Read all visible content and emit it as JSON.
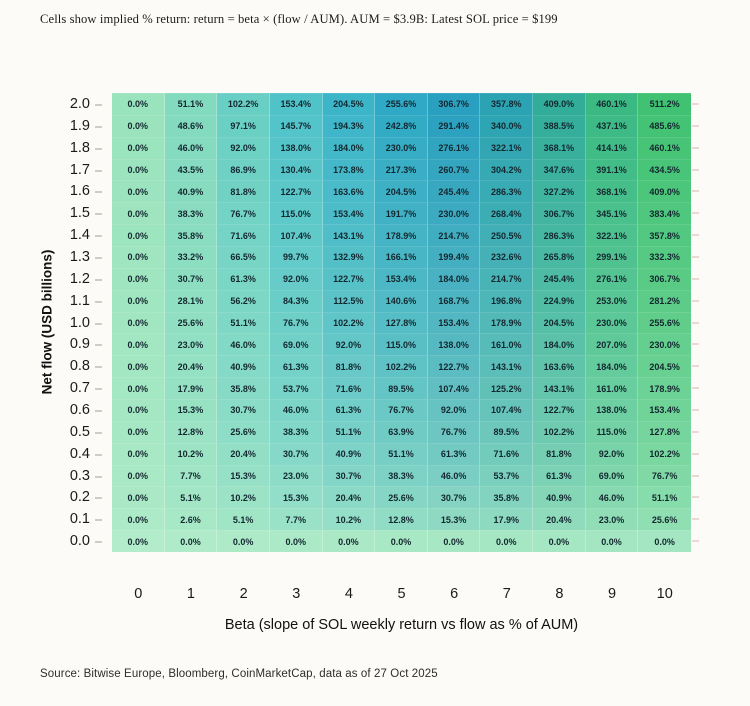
{
  "title": "Cells show implied % return: return = beta × (flow / AUM). AUM = $3.9B: Latest SOL price = $199",
  "source": "Source: Bitwise Europe, Bloomberg, CoinMarketCap, data as of 27 Oct 2025",
  "chart_data": {
    "type": "heatmap",
    "xlabel": "Beta (slope of SOL weekly return vs flow as % of AUM)",
    "ylabel": "Net flow (USD billions)",
    "x_ticks": [
      "0",
      "1",
      "2",
      "3",
      "4",
      "5",
      "6",
      "7",
      "8",
      "9",
      "10"
    ],
    "y_ticks": [
      "2.0",
      "1.9",
      "1.8",
      "1.7",
      "1.6",
      "1.5",
      "1.4",
      "1.3",
      "1.2",
      "1.1",
      "1.0",
      "0.9",
      "0.8",
      "0.7",
      "0.6",
      "0.5",
      "0.4",
      "0.3",
      "0.2",
      "0.1",
      "0.0"
    ],
    "unit": "%",
    "rows": [
      {
        "flow": "2.0",
        "values": [
          "0.0%",
          "51.1%",
          "102.2%",
          "153.4%",
          "204.5%",
          "255.6%",
          "306.7%",
          "357.8%",
          "409.0%",
          "460.1%",
          "511.2%"
        ]
      },
      {
        "flow": "1.9",
        "values": [
          "0.0%",
          "48.6%",
          "97.1%",
          "145.7%",
          "194.3%",
          "242.8%",
          "291.4%",
          "340.0%",
          "388.5%",
          "437.1%",
          "485.6%"
        ]
      },
      {
        "flow": "1.8",
        "values": [
          "0.0%",
          "46.0%",
          "92.0%",
          "138.0%",
          "184.0%",
          "230.0%",
          "276.1%",
          "322.1%",
          "368.1%",
          "414.1%",
          "460.1%"
        ]
      },
      {
        "flow": "1.7",
        "values": [
          "0.0%",
          "43.5%",
          "86.9%",
          "130.4%",
          "173.8%",
          "217.3%",
          "260.7%",
          "304.2%",
          "347.6%",
          "391.1%",
          "434.5%"
        ]
      },
      {
        "flow": "1.6",
        "values": [
          "0.0%",
          "40.9%",
          "81.8%",
          "122.7%",
          "163.6%",
          "204.5%",
          "245.4%",
          "286.3%",
          "327.2%",
          "368.1%",
          "409.0%"
        ]
      },
      {
        "flow": "1.5",
        "values": [
          "0.0%",
          "38.3%",
          "76.7%",
          "115.0%",
          "153.4%",
          "191.7%",
          "230.0%",
          "268.4%",
          "306.7%",
          "345.1%",
          "383.4%"
        ]
      },
      {
        "flow": "1.4",
        "values": [
          "0.0%",
          "35.8%",
          "71.6%",
          "107.4%",
          "143.1%",
          "178.9%",
          "214.7%",
          "250.5%",
          "286.3%",
          "322.1%",
          "357.8%"
        ]
      },
      {
        "flow": "1.3",
        "values": [
          "0.0%",
          "33.2%",
          "66.5%",
          "99.7%",
          "132.9%",
          "166.1%",
          "199.4%",
          "232.6%",
          "265.8%",
          "299.1%",
          "332.3%"
        ]
      },
      {
        "flow": "1.2",
        "values": [
          "0.0%",
          "30.7%",
          "61.3%",
          "92.0%",
          "122.7%",
          "153.4%",
          "184.0%",
          "214.7%",
          "245.4%",
          "276.1%",
          "306.7%"
        ]
      },
      {
        "flow": "1.1",
        "values": [
          "0.0%",
          "28.1%",
          "56.2%",
          "84.3%",
          "112.5%",
          "140.6%",
          "168.7%",
          "196.8%",
          "224.9%",
          "253.0%",
          "281.2%"
        ]
      },
      {
        "flow": "1.0",
        "values": [
          "0.0%",
          "25.6%",
          "51.1%",
          "76.7%",
          "102.2%",
          "127.8%",
          "153.4%",
          "178.9%",
          "204.5%",
          "230.0%",
          "255.6%"
        ]
      },
      {
        "flow": "0.9",
        "values": [
          "0.0%",
          "23.0%",
          "46.0%",
          "69.0%",
          "92.0%",
          "115.0%",
          "138.0%",
          "161.0%",
          "184.0%",
          "207.0%",
          "230.0%"
        ]
      },
      {
        "flow": "0.8",
        "values": [
          "0.0%",
          "20.4%",
          "40.9%",
          "61.3%",
          "81.8%",
          "102.2%",
          "122.7%",
          "143.1%",
          "163.6%",
          "184.0%",
          "204.5%"
        ]
      },
      {
        "flow": "0.7",
        "values": [
          "0.0%",
          "17.9%",
          "35.8%",
          "53.7%",
          "71.6%",
          "89.5%",
          "107.4%",
          "125.2%",
          "143.1%",
          "161.0%",
          "178.9%"
        ]
      },
      {
        "flow": "0.6",
        "values": [
          "0.0%",
          "15.3%",
          "30.7%",
          "46.0%",
          "61.3%",
          "76.7%",
          "92.0%",
          "107.4%",
          "122.7%",
          "138.0%",
          "153.4%"
        ]
      },
      {
        "flow": "0.5",
        "values": [
          "0.0%",
          "12.8%",
          "25.6%",
          "38.3%",
          "51.1%",
          "63.9%",
          "76.7%",
          "89.5%",
          "102.2%",
          "115.0%",
          "127.8%"
        ]
      },
      {
        "flow": "0.4",
        "values": [
          "0.0%",
          "10.2%",
          "20.4%",
          "30.7%",
          "40.9%",
          "51.1%",
          "61.3%",
          "71.6%",
          "81.8%",
          "92.0%",
          "102.2%"
        ]
      },
      {
        "flow": "0.3",
        "values": [
          "0.0%",
          "7.7%",
          "15.3%",
          "23.0%",
          "30.7%",
          "38.3%",
          "46.0%",
          "53.7%",
          "61.3%",
          "69.0%",
          "76.7%"
        ]
      },
      {
        "flow": "0.2",
        "values": [
          "0.0%",
          "5.1%",
          "10.2%",
          "15.3%",
          "20.4%",
          "25.6%",
          "30.7%",
          "35.8%",
          "40.9%",
          "46.0%",
          "51.1%"
        ]
      },
      {
        "flow": "0.1",
        "values": [
          "0.0%",
          "2.6%",
          "5.1%",
          "7.7%",
          "10.2%",
          "12.8%",
          "15.3%",
          "17.9%",
          "20.4%",
          "23.0%",
          "25.6%"
        ]
      },
      {
        "flow": "0.0",
        "values": [
          "0.0%",
          "0.0%",
          "0.0%",
          "0.0%",
          "0.0%",
          "0.0%",
          "0.0%",
          "0.0%",
          "0.0%",
          "0.0%",
          "0.0%"
        ]
      }
    ],
    "colors": {
      "background": "#fcfbf8",
      "cell_text": "#13272f",
      "column_top": [
        "#99e3bd",
        "#82dabf",
        "#69cfc4",
        "#50c3c9",
        "#3cb5c9",
        "#2fa9c5",
        "#2aa0c0",
        "#2ba3b2",
        "#32ad9a",
        "#3ab983",
        "#41c272"
      ],
      "column_bottom": [
        "#b2ecca",
        "#b0ebc9",
        "#aeeac8",
        "#ace9c7",
        "#aae8c6",
        "#a8e8c5",
        "#a7e7c4",
        "#a6e7c3",
        "#a5e6c3",
        "#a4e6c2",
        "#a3e6c1"
      ],
      "tick_left": "#d3ccc6",
      "tick_right": "#ecd8d2"
    },
    "legend": "none",
    "grid": "off"
  }
}
